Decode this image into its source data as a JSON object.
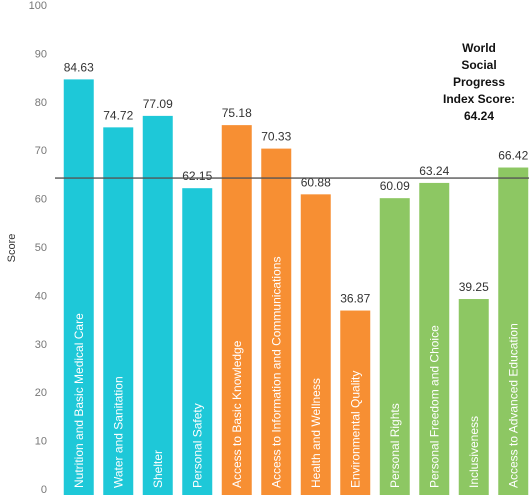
{
  "chart_data": {
    "type": "bar",
    "ylabel": "Score",
    "ylim": [
      0,
      100
    ],
    "yticks": [
      0,
      10,
      20,
      30,
      40,
      50,
      60,
      70,
      80,
      90,
      100
    ],
    "grid": false,
    "categories": [
      "Nutrition and Basic Medical Care",
      "Water and Sanitation",
      "Shelter",
      "Personal Safety",
      "Access to Basic Knowledge",
      "Access to Information and Communications",
      "Health and Wellness",
      "Environmental Quality",
      "Personal Rights",
      "Personal Freedom and Choice",
      "Inclusiveness",
      "Access to Advanced Education"
    ],
    "values": [
      84.63,
      74.72,
      77.09,
      62.15,
      75.18,
      70.33,
      60.88,
      36.87,
      60.09,
      63.24,
      39.25,
      66.42
    ],
    "value_labels": [
      "84.63",
      "74.72",
      "77.09",
      "62.15",
      "75.18",
      "70.33",
      "60.88",
      "36.87",
      "60.09",
      "63.24",
      "39.25",
      "66.42"
    ],
    "colors": [
      "#1ec8d8",
      "#1ec8d8",
      "#1ec8d8",
      "#1ec8d8",
      "#f78f33",
      "#f78f33",
      "#f78f33",
      "#f78f33",
      "#8dc763",
      "#8dc763",
      "#8dc763",
      "#8dc763"
    ],
    "reference_line": {
      "value": 64.24,
      "color": "#555555",
      "annotation": [
        "World",
        "Social",
        "Progress",
        "Index Score:",
        "64.24"
      ]
    }
  }
}
